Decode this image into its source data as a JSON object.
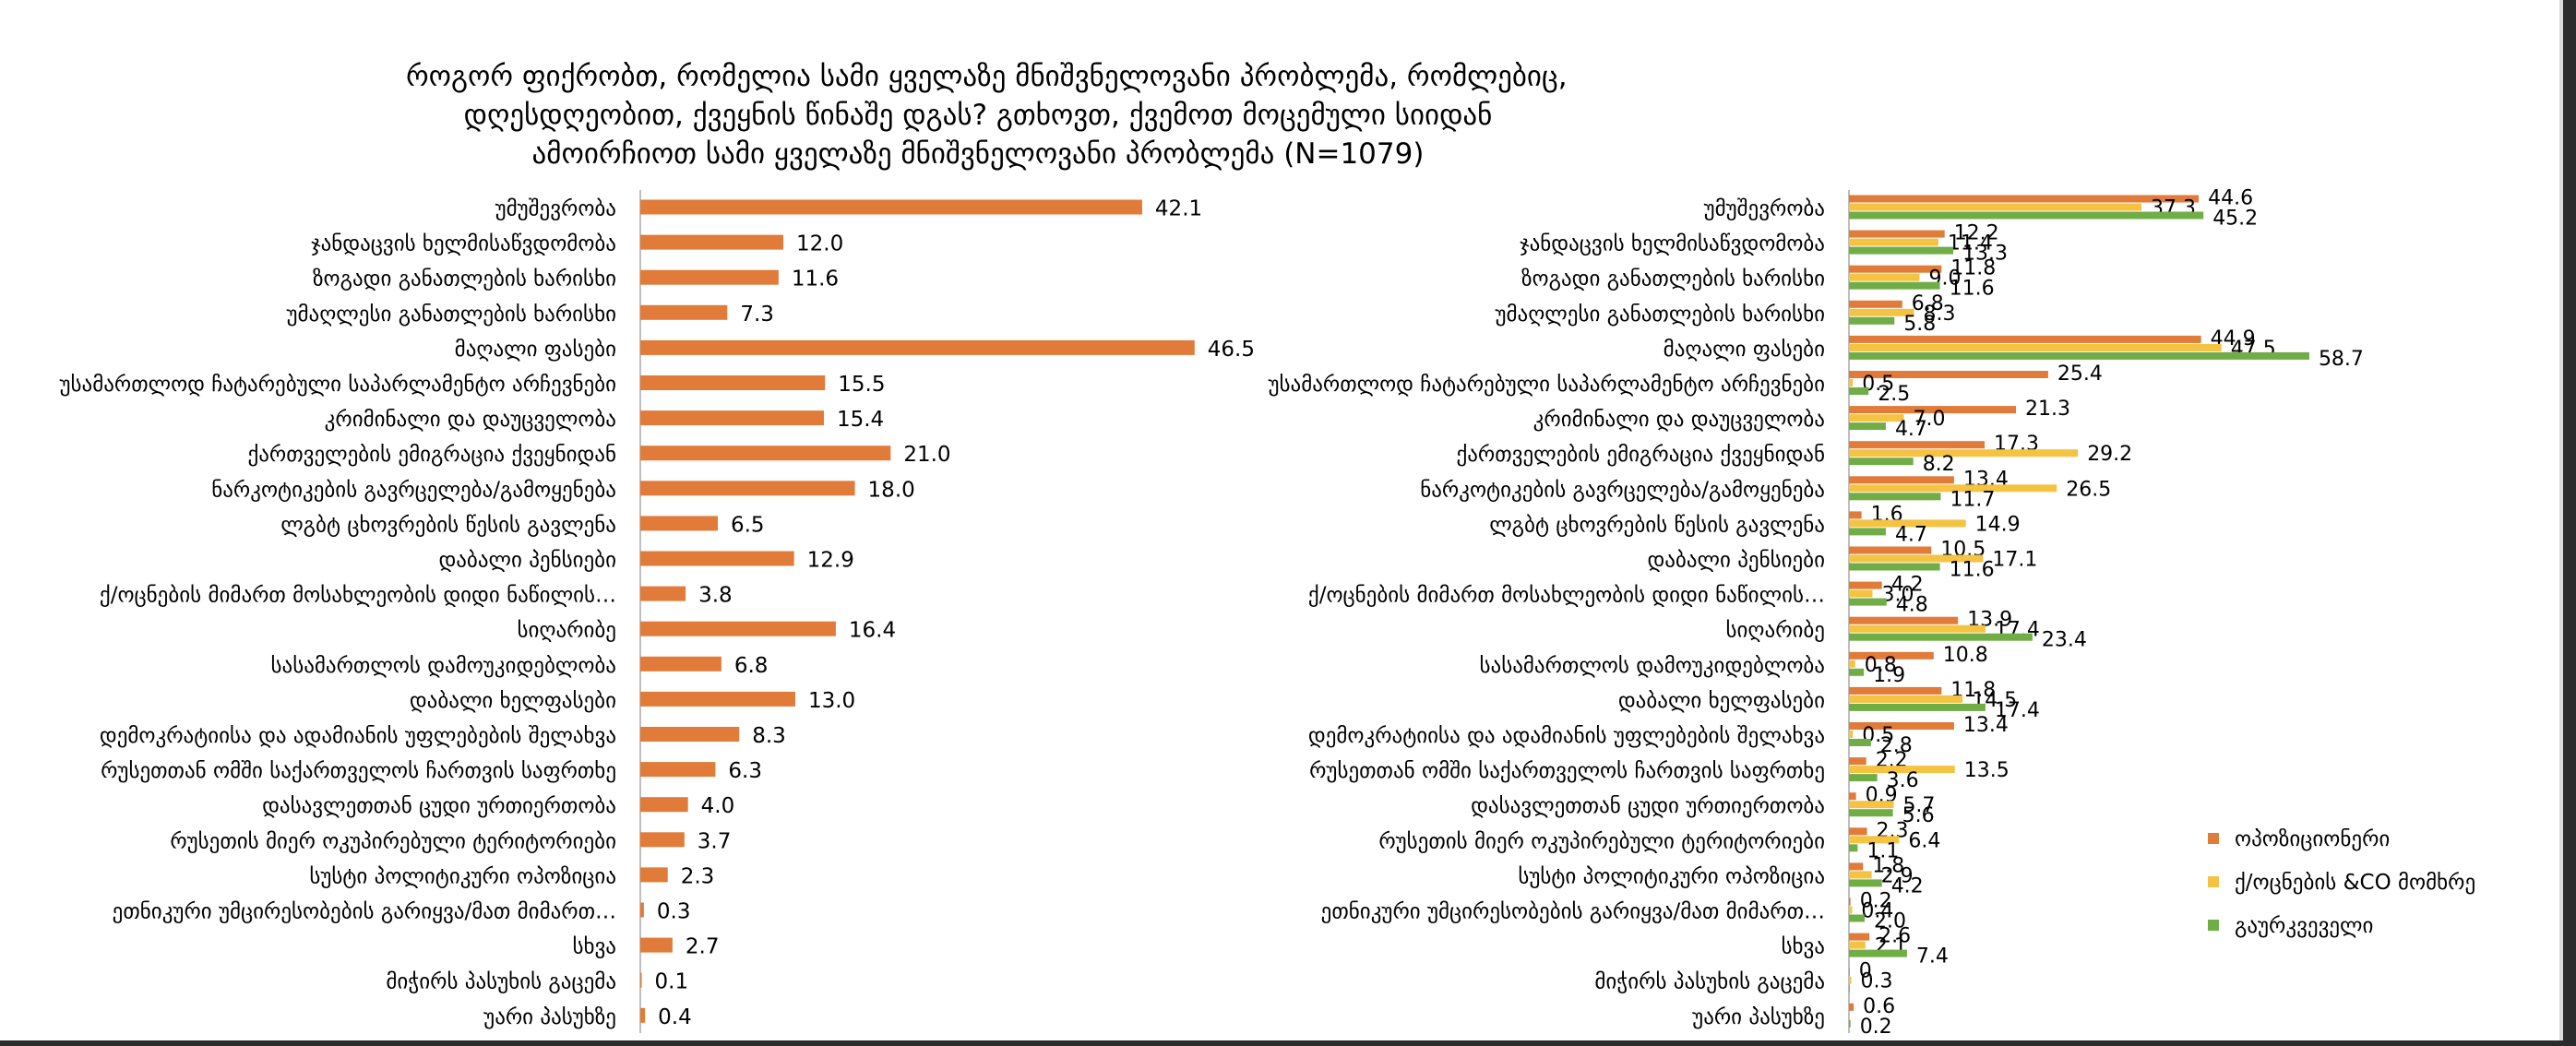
{
  "title_lines": [
    "როგორ ფიქრობთ, რომელია სამი ყველაზე მნიშვნელოვანი პრობლემა, რომლებიც,",
    "დღესდღეობით, ქვეყნის წინაშე დგას? გთხოვთ, ქვემოთ მოცემული სიიდან",
    "ამოირჩიოთ სამი ყველაზე მნიშვნელოვანი პრობლემა (N=1079)"
  ],
  "chart_data": [
    {
      "type": "bar",
      "orientation": "horizontal",
      "title": "როგორ ფიქრობთ, რომელია სამი ყველაზე მნიშვნელოვანი პრობლემა, რომლებიც, დღესდღეობით, ქვეყნის წინაშე დგას? გთხოვთ, ქვემოთ მოცემული სიიდან ამოირჩიოთ სამი ყველაზე მნიშვნელოვანი პრობლემა (N=1079)",
      "categories": [
        "უმუშევრობა",
        "ჯანდაცვის ხელმისაწვდომობა",
        "ზოგადი განათლების ხარისხი",
        "უმაღლესი განათლების ხარისხი",
        "მაღალი ფასები",
        "უსამართლოდ ჩატარებული საპარლამენტო არჩევნები",
        "კრიმინალი და დაუცველობა",
        "ქართველების ემიგრაცია ქვეყნიდან",
        "ნარკოტიკების გავრცელება/გამოყენება",
        "ლგბტ ცხოვრების  წესის გავლენა",
        "დაბალი პენსიები",
        "ქ/ოცნების მიმართ მოსახლეობის დიდი ნაწილის…",
        "სიღარიბე",
        "სასამართლოს დამოუკიდებლობა",
        "დაბალი ხელფასები",
        "დემოკრატიისა  და ადამიანის უფლებების შელახვა",
        "რუსეთთან ომში საქართველოს ჩართვის საფრთხე",
        "დასავლეთთან ცუდი ურთიერთობა",
        "რუსეთის მიერ ოკუპირებული ტერიტორიები",
        "სუსტი პოლიტიკური ოპოზიცია",
        "ეთნიკური უმცირესობების გარიყვა/მათ მიმართ…",
        "სხვა",
        "მიჭირს პასუხის გაცემა",
        "უარი პასუხზე"
      ],
      "values": [
        42.1,
        12.0,
        11.6,
        7.3,
        46.5,
        15.5,
        15.4,
        21.0,
        18.0,
        6.5,
        12.9,
        3.8,
        16.4,
        6.8,
        13.0,
        8.3,
        6.3,
        4.0,
        3.7,
        2.3,
        0.3,
        2.7,
        0.1,
        0.4
      ],
      "value_labels": [
        "42.1",
        "12.0",
        "11.6",
        "7.3",
        "46.5",
        "15.5",
        "15.4",
        "21.0",
        "18.0",
        "6.5",
        "12.9",
        "3.8",
        "16.4",
        "6.8",
        "13.0",
        "8.3",
        "6.3",
        "4.0",
        "3.7",
        "2.3",
        "0.3",
        "2.7",
        "0.1",
        "0.4"
      ],
      "color": "#e07b39",
      "xlim": [
        0,
        60
      ],
      "grid": false
    },
    {
      "type": "bar",
      "orientation": "horizontal",
      "categories": [
        "უმუშევრობა",
        "ჯანდაცვის ხელმისაწვდომობა",
        "ზოგადი განათლების ხარისხი",
        "უმაღლესი განათლების ხარისხი",
        "მაღალი ფასები",
        "უსამართლოდ ჩატარებული საპარლამენტო არჩევნები",
        "კრიმინალი და დაუცველობა",
        "ქართველების ემიგრაცია ქვეყნიდან",
        "ნარკოტიკების გავრცელება/გამოყენება",
        "ლგბტ ცხოვრების  წესის გავლენა",
        "დაბალი პენსიები",
        "ქ/ოცნების მიმართ მოსახლეობის დიდი ნაწილის…",
        "სიღარიბე",
        "სასამართლოს დამოუკიდებლობა",
        "დაბალი ხელფასები",
        "დემოკრატიისა  და ადამიანის უფლებების შელახვა",
        "რუსეთთან ომში საქართველოს ჩართვის საფრთხე",
        "დასავლეთთან ცუდი ურთიერთობა",
        "რუსეთის მიერ ოკუპირებული ტერიტორიები",
        "სუსტი პოლიტიკური ოპოზიცია",
        "ეთნიკური უმცირესობების გარიყვა/მათ მიმართ…",
        "სხვა",
        "მიჭირს პასუხის გაცემა",
        "უარი პასუხზე"
      ],
      "series": [
        {
          "name": "ოპოზიციონერი",
          "color": "#e07b39",
          "values": [
            44.6,
            12.2,
            11.8,
            6.8,
            44.9,
            25.4,
            21.3,
            17.3,
            13.4,
            1.6,
            10.5,
            4.2,
            13.9,
            10.8,
            11.8,
            13.4,
            2.2,
            0.9,
            2.3,
            1.8,
            0.2,
            2.6,
            0.0,
            0.6
          ]
        },
        {
          "name": "ქ/ოცნების &CO მომხრე",
          "color": "#f5c342",
          "values": [
            37.3,
            11.4,
            9.0,
            8.3,
            47.5,
            0.5,
            7.0,
            29.2,
            26.5,
            14.9,
            17.1,
            3.0,
            17.4,
            0.8,
            14.5,
            0.5,
            13.5,
            5.7,
            6.4,
            2.9,
            0.4,
            2.1,
            0.3,
            0.0
          ],
          "labels": [
            "37.3",
            "11.4",
            "9.0",
            "8.3",
            "47.5",
            "0.5",
            "7.0",
            "29.2",
            "26.5",
            "14.9",
            "17.1",
            "3.0",
            "17.4",
            "0.8",
            "14.5",
            "0.5",
            "13.5",
            "5.7",
            "6.4",
            "2.9",
            "0.4",
            "2.1",
            "0.3",
            ""
          ]
        },
        {
          "name": "გაურკვეველი",
          "color": "#70ad47",
          "values": [
            45.2,
            13.3,
            11.6,
            5.8,
            58.7,
            2.5,
            4.7,
            8.2,
            11.7,
            4.7,
            11.6,
            4.8,
            23.4,
            1.9,
            17.4,
            2.8,
            3.6,
            5.6,
            1.1,
            4.2,
            2.0,
            7.4,
            0.0,
            0.2
          ],
          "labels": [
            "45.2",
            "13.3",
            "11.6",
            "5.8",
            "58.7",
            "2.5",
            "4.7",
            "8.2",
            "11.7",
            "4.7",
            "11.6",
            "4.8",
            "23.4",
            "1.9",
            "17.4",
            "2.8",
            "3.6",
            "5.6",
            "1.1",
            "4.2",
            "2.0",
            "7.4",
            "",
            "0.2"
          ]
        }
      ],
      "legend_position": "right",
      "xlim": [
        0,
        70
      ],
      "grid": false
    }
  ]
}
